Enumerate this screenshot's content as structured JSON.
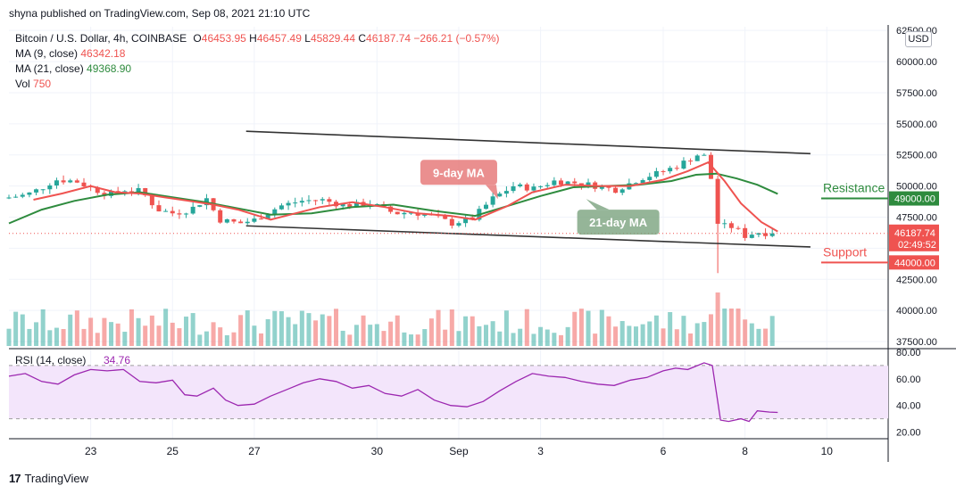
{
  "header": {
    "published": "shyna published on TradingView.com, Sep 08, 2021 21:10 UTC",
    "symbol": "Bitcoin / U.S. Dollar, 4h, COINBASE",
    "open_label": "O",
    "open": "46453.95",
    "high_label": "H",
    "high": "46457.49",
    "low_label": "L",
    "low": "45829.44",
    "close_label": "C",
    "close": "46187.74",
    "change": "−266.21 (−0.57%)",
    "ma9_label": "MA (9, close)",
    "ma9_value": "46342.18",
    "ma21_label": "MA (21, close)",
    "ma21_value": "49368.90",
    "vol_label": "Vol",
    "vol_value": "750",
    "currency": "USD"
  },
  "footer": {
    "brand": "TradingView"
  },
  "colors": {
    "up": "#26a69a",
    "down": "#ef5350",
    "ma9": "#ef5350",
    "ma21": "#2e8b3e",
    "rsi": "#9c27b0",
    "rsi_band": "#f3e5fb",
    "channel": "#333333"
  },
  "chart_data": {
    "type": "candlestick",
    "price_axis": {
      "ticks": [
        62500,
        60000,
        57500,
        55000,
        52500,
        50000,
        47500,
        45000,
        42500,
        40000,
        37500
      ],
      "tick_labels": [
        "62500.00",
        "60000.00",
        "57500.00",
        "55000.00",
        "52500.00",
        "50000.00",
        "47500.00",
        "45000.00",
        "42500.00",
        "40000.00",
        "37500.00"
      ],
      "range": [
        37000,
        62800
      ]
    },
    "time_axis": {
      "labels": [
        "23",
        "25",
        "27",
        "30",
        "Sep",
        "3",
        "6",
        "8",
        "10"
      ],
      "label_positions_days": [
        23,
        25,
        27,
        30,
        32,
        34,
        37,
        39,
        41
      ],
      "start_day": 21.0,
      "end_day": 42.5
    },
    "current_price": {
      "value": 46187.74,
      "label": "46187.74",
      "countdown": "02:49:52"
    },
    "levels": [
      {
        "name": "Resistance",
        "value": 49000,
        "label": "49000.00"
      },
      {
        "name": "Support",
        "value": 44000,
        "label": "44000.00"
      }
    ],
    "annotations": [
      {
        "text": "9-day MA",
        "x_day": 32.0,
        "y": 51100
      },
      {
        "text": "21-day MA",
        "x_day": 35.9,
        "y": 47100
      }
    ],
    "channel_lines": [
      {
        "from": {
          "day": 26.8,
          "price": 54400
        },
        "to": {
          "day": 40.6,
          "price": 52600
        }
      },
      {
        "from": {
          "day": 26.8,
          "price": 46800
        },
        "to": {
          "day": 40.6,
          "price": 45100
        }
      }
    ],
    "anchors": [
      {
        "day": 21.0,
        "price": 49000
      },
      {
        "day": 21.6,
        "price": 49300
      },
      {
        "day": 22.0,
        "price": 49900
      },
      {
        "day": 22.3,
        "price": 50500
      },
      {
        "day": 22.8,
        "price": 50400
      },
      {
        "day": 23.2,
        "price": 49800
      },
      {
        "day": 23.6,
        "price": 49300
      },
      {
        "day": 24.0,
        "price": 49700
      },
      {
        "day": 24.4,
        "price": 49600
      },
      {
        "day": 24.8,
        "price": 48100
      },
      {
        "day": 25.2,
        "price": 47800
      },
      {
        "day": 25.6,
        "price": 48100
      },
      {
        "day": 26.0,
        "price": 49000
      },
      {
        "day": 26.3,
        "price": 47300
      },
      {
        "day": 26.8,
        "price": 47000
      },
      {
        "day": 27.2,
        "price": 47300
      },
      {
        "day": 27.8,
        "price": 48400
      },
      {
        "day": 28.3,
        "price": 48800
      },
      {
        "day": 28.8,
        "price": 48900
      },
      {
        "day": 29.4,
        "price": 48400
      },
      {
        "day": 30.0,
        "price": 48600
      },
      {
        "day": 30.6,
        "price": 47800
      },
      {
        "day": 31.0,
        "price": 47900
      },
      {
        "day": 31.5,
        "price": 47600
      },
      {
        "day": 32.0,
        "price": 47000
      },
      {
        "day": 32.5,
        "price": 47400
      },
      {
        "day": 33.0,
        "price": 49000
      },
      {
        "day": 33.5,
        "price": 50000
      },
      {
        "day": 34.0,
        "price": 49800
      },
      {
        "day": 34.5,
        "price": 50400
      },
      {
        "day": 35.2,
        "price": 50200
      },
      {
        "day": 36.0,
        "price": 49700
      },
      {
        "day": 36.6,
        "price": 50600
      },
      {
        "day": 37.0,
        "price": 51000
      },
      {
        "day": 37.5,
        "price": 51600
      },
      {
        "day": 38.0,
        "price": 52500
      },
      {
        "day": 38.3,
        "price": 52300
      },
      {
        "day": 38.4,
        "price": 47200
      },
      {
        "day": 38.6,
        "price": 46800
      },
      {
        "day": 38.9,
        "price": 46700
      },
      {
        "day": 39.2,
        "price": 45900
      },
      {
        "day": 39.4,
        "price": 46300
      },
      {
        "day": 39.8,
        "price": 46187
      }
    ],
    "ma9_points": [
      [
        21.6,
        48900
      ],
      [
        22.3,
        49400
      ],
      [
        23.0,
        50000
      ],
      [
        23.6,
        49500
      ],
      [
        24.2,
        49400
      ],
      [
        24.8,
        49100
      ],
      [
        25.4,
        48800
      ],
      [
        26.0,
        48500
      ],
      [
        26.6,
        48100
      ],
      [
        27.4,
        47300
      ],
      [
        28.0,
        47800
      ],
      [
        28.6,
        48300
      ],
      [
        29.4,
        48700
      ],
      [
        30.2,
        48300
      ],
      [
        31.0,
        47800
      ],
      [
        31.8,
        47600
      ],
      [
        32.4,
        47300
      ],
      [
        33.2,
        48400
      ],
      [
        33.8,
        49500
      ],
      [
        34.6,
        50100
      ],
      [
        35.4,
        50000
      ],
      [
        36.2,
        50000
      ],
      [
        37.0,
        50500
      ],
      [
        37.6,
        51200
      ],
      [
        38.1,
        51900
      ],
      [
        38.5,
        50400
      ],
      [
        38.9,
        48600
      ],
      [
        39.4,
        47100
      ],
      [
        39.8,
        46342
      ]
    ],
    "ma21_points": [
      [
        21.0,
        47000
      ],
      [
        21.8,
        48100
      ],
      [
        22.6,
        48800
      ],
      [
        23.4,
        49300
      ],
      [
        24.2,
        49500
      ],
      [
        25.0,
        49100
      ],
      [
        25.8,
        48700
      ],
      [
        26.6,
        48200
      ],
      [
        27.4,
        47700
      ],
      [
        28.4,
        47800
      ],
      [
        29.4,
        48300
      ],
      [
        30.4,
        48500
      ],
      [
        31.4,
        48000
      ],
      [
        32.4,
        47600
      ],
      [
        33.2,
        48400
      ],
      [
        34.0,
        49200
      ],
      [
        34.8,
        49900
      ],
      [
        35.6,
        50000
      ],
      [
        36.4,
        50100
      ],
      [
        37.2,
        50400
      ],
      [
        37.8,
        50900
      ],
      [
        38.3,
        51000
      ],
      [
        38.8,
        50600
      ],
      [
        39.3,
        50100
      ],
      [
        39.8,
        49369
      ]
    ],
    "volume_scale_note_free": true,
    "rsi": {
      "label": "RSI (14, close)",
      "value": "34.76",
      "ticks": [
        80,
        60,
        40,
        20
      ],
      "tick_labels": [
        "80.00",
        "60.00",
        "40.00",
        "20.00"
      ],
      "band": [
        30,
        70
      ],
      "range": [
        15,
        82
      ],
      "points": [
        [
          21.0,
          62
        ],
        [
          21.4,
          64
        ],
        [
          21.8,
          58
        ],
        [
          22.2,
          56
        ],
        [
          22.6,
          63
        ],
        [
          23.0,
          67
        ],
        [
          23.4,
          66
        ],
        [
          23.8,
          67
        ],
        [
          24.2,
          58
        ],
        [
          24.6,
          57
        ],
        [
          25.0,
          59
        ],
        [
          25.3,
          48
        ],
        [
          25.6,
          47
        ],
        [
          26.0,
          53
        ],
        [
          26.3,
          44
        ],
        [
          26.6,
          40
        ],
        [
          27.0,
          41
        ],
        [
          27.4,
          47
        ],
        [
          27.8,
          52
        ],
        [
          28.2,
          57
        ],
        [
          28.6,
          60
        ],
        [
          29.0,
          58
        ],
        [
          29.4,
          53
        ],
        [
          29.8,
          55
        ],
        [
          30.2,
          49
        ],
        [
          30.6,
          47
        ],
        [
          31.0,
          52
        ],
        [
          31.4,
          44
        ],
        [
          31.8,
          40
        ],
        [
          32.2,
          39
        ],
        [
          32.6,
          43
        ],
        [
          33.0,
          51
        ],
        [
          33.4,
          58
        ],
        [
          33.8,
          64
        ],
        [
          34.2,
          62
        ],
        [
          34.6,
          61
        ],
        [
          35.0,
          58
        ],
        [
          35.4,
          56
        ],
        [
          35.8,
          55
        ],
        [
          36.2,
          59
        ],
        [
          36.6,
          61
        ],
        [
          37.0,
          66
        ],
        [
          37.3,
          68
        ],
        [
          37.6,
          67
        ],
        [
          38.0,
          72
        ],
        [
          38.2,
          70
        ],
        [
          38.4,
          29
        ],
        [
          38.6,
          28
        ],
        [
          38.9,
          30
        ],
        [
          39.1,
          28
        ],
        [
          39.3,
          36
        ],
        [
          39.6,
          35
        ],
        [
          39.8,
          34.76
        ]
      ]
    }
  }
}
